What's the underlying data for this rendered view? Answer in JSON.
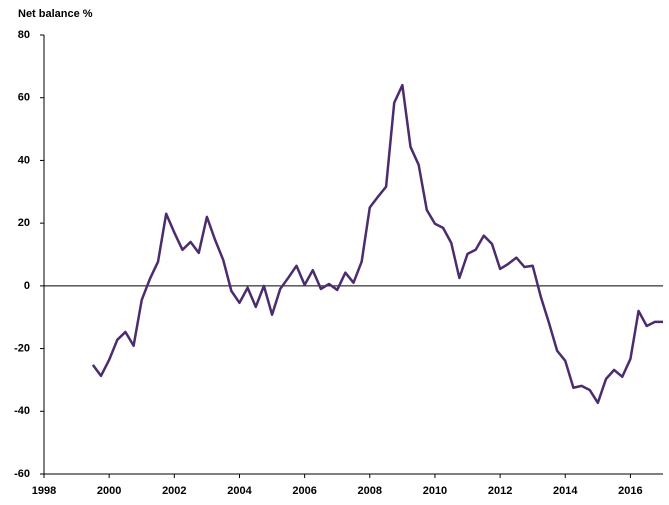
{
  "chart_data": {
    "type": "line",
    "title": "Net balance %",
    "x": [
      1999.5,
      1999.75,
      2000,
      2000.25,
      2000.5,
      2000.75,
      2001,
      2001.25,
      2001.5,
      2001.75,
      2002,
      2002.25,
      2002.5,
      2002.75,
      2003,
      2003.25,
      2003.5,
      2003.75,
      2004,
      2004.25,
      2004.5,
      2004.75,
      2005,
      2005.25,
      2005.5,
      2005.75,
      2006,
      2006.25,
      2006.5,
      2006.75,
      2007,
      2007.25,
      2007.5,
      2007.75,
      2008,
      2008.25,
      2008.5,
      2008.75,
      2009,
      2009.25,
      2009.5,
      2009.75,
      2010,
      2010.25,
      2010.5,
      2010.75,
      2011,
      2011.25,
      2011.5,
      2011.75,
      2012,
      2012.25,
      2012.5,
      2012.75,
      2013,
      2013.25,
      2013.5,
      2013.75,
      2014,
      2014.25,
      2014.5,
      2014.75,
      2015,
      2015.25,
      2015.5,
      2015.75,
      2016,
      2016.25,
      2016.5,
      2016.75,
      2017
    ],
    "series": [
      {
        "color": "#4b2c6e",
        "values": [
          -25.2,
          -28.7,
          -23.6,
          -17.2,
          -14.7,
          -19.1,
          -4.5,
          2.2,
          7.7,
          23,
          17,
          11.5,
          14,
          10.5,
          22,
          14.7,
          8.3,
          -1.6,
          -5.4,
          -0.6,
          -6.7,
          0,
          -9.2,
          -1,
          2.6,
          6.4,
          0.3,
          5,
          -1,
          0.6,
          -1.3,
          4.2,
          1,
          7.7,
          25,
          28.4,
          31.6,
          58.4,
          64,
          44.3,
          38.6,
          24.2,
          19.8,
          18.5,
          13.7,
          2.5,
          10.2,
          11.5,
          16,
          13.4,
          5.4,
          7,
          9,
          6,
          6.4,
          -3.5,
          -11.8,
          -20.7,
          -23.9,
          -32.5,
          -31.9,
          -33.2,
          -37.3,
          -29.7,
          -26.8,
          -29,
          -23.3,
          -8,
          -12.8,
          -11.5,
          -11.5
        ]
      }
    ],
    "xlim": [
      1998,
      2017
    ],
    "xticks": [
      1998,
      2000,
      2002,
      2004,
      2006,
      2008,
      2010,
      2012,
      2014,
      2016
    ],
    "ylim": [
      -60,
      80
    ],
    "yticks": [
      -60,
      -40,
      -20,
      0,
      20,
      40,
      60,
      80
    ],
    "grid": false
  }
}
